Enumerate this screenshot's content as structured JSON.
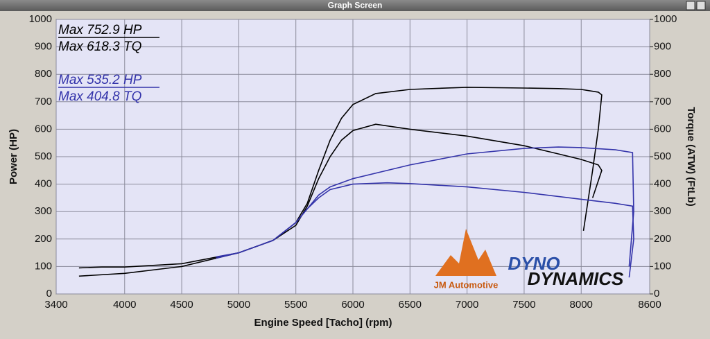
{
  "window_title": "Graph Screen",
  "chart_data": {
    "type": "line",
    "xlabel": "Engine Speed [Tacho] (rpm)",
    "ylabel": "Power (HP)",
    "y2label": "Torque (ATW) (FtLb)",
    "xlim": [
      3400,
      8600
    ],
    "xticks": [
      3400,
      4000,
      4500,
      5000,
      5500,
      6000,
      6500,
      7000,
      7500,
      8000,
      8600
    ],
    "ylim": [
      0,
      1000
    ],
    "yticks": [
      0,
      100,
      200,
      300,
      400,
      500,
      600,
      700,
      800,
      900,
      1000
    ],
    "y2lim": [
      0,
      1000
    ],
    "y2ticks": [
      0,
      100,
      200,
      300,
      400,
      500,
      600,
      700,
      800,
      900,
      1000
    ],
    "grid": true,
    "series": [
      {
        "name": "Max 752.9 HP",
        "color": "#000000",
        "axis": "y",
        "x": [
          3600,
          4000,
          4500,
          5000,
          5300,
          5500,
          5600,
          5700,
          5800,
          5900,
          6000,
          6200,
          6500,
          7000,
          7500,
          7800,
          8000,
          8150,
          8180,
          8150,
          8100,
          8020
        ],
        "values": [
          65,
          75,
          100,
          150,
          195,
          260,
          330,
          450,
          560,
          640,
          690,
          730,
          745,
          752.9,
          750,
          748,
          745,
          735,
          725,
          600,
          450,
          230
        ]
      },
      {
        "name": "Max 618.3 TQ",
        "color": "#000000",
        "axis": "y2",
        "x": [
          3600,
          3800,
          4000,
          4500,
          5000,
          5300,
          5500,
          5600,
          5700,
          5800,
          5900,
          6000,
          6200,
          6500,
          7000,
          7500,
          7800,
          8000,
          8150,
          8180,
          8100
        ],
        "values": [
          95,
          98,
          98,
          110,
          150,
          195,
          250,
          320,
          420,
          500,
          560,
          595,
          618.3,
          600,
          575,
          540,
          510,
          490,
          470,
          450,
          350
        ]
      },
      {
        "name": "Max 535.2 HP",
        "color": "#3333aa",
        "axis": "y",
        "x": [
          4800,
          5000,
          5300,
          5500,
          5600,
          5700,
          5800,
          6000,
          6500,
          7000,
          7500,
          7800,
          8000,
          8300,
          8450,
          8460,
          8420
        ],
        "values": [
          130,
          150,
          195,
          260,
          310,
          360,
          390,
          420,
          470,
          510,
          530,
          535.2,
          533,
          525,
          515,
          300,
          100
        ]
      },
      {
        "name": "Max 404.8 TQ",
        "color": "#3333aa",
        "axis": "y2",
        "x": [
          4800,
          5000,
          5300,
          5500,
          5600,
          5700,
          5800,
          6000,
          6300,
          6500,
          7000,
          7500,
          8000,
          8300,
          8450,
          8460,
          8420
        ],
        "values": [
          135,
          150,
          195,
          260,
          310,
          350,
          380,
          400,
          404.8,
          402,
          390,
          370,
          345,
          330,
          320,
          200,
          60
        ]
      }
    ]
  },
  "logo": {
    "company": "JM Automotive",
    "brand_top": "DYNO",
    "brand_bottom": "DYNAMICS"
  }
}
